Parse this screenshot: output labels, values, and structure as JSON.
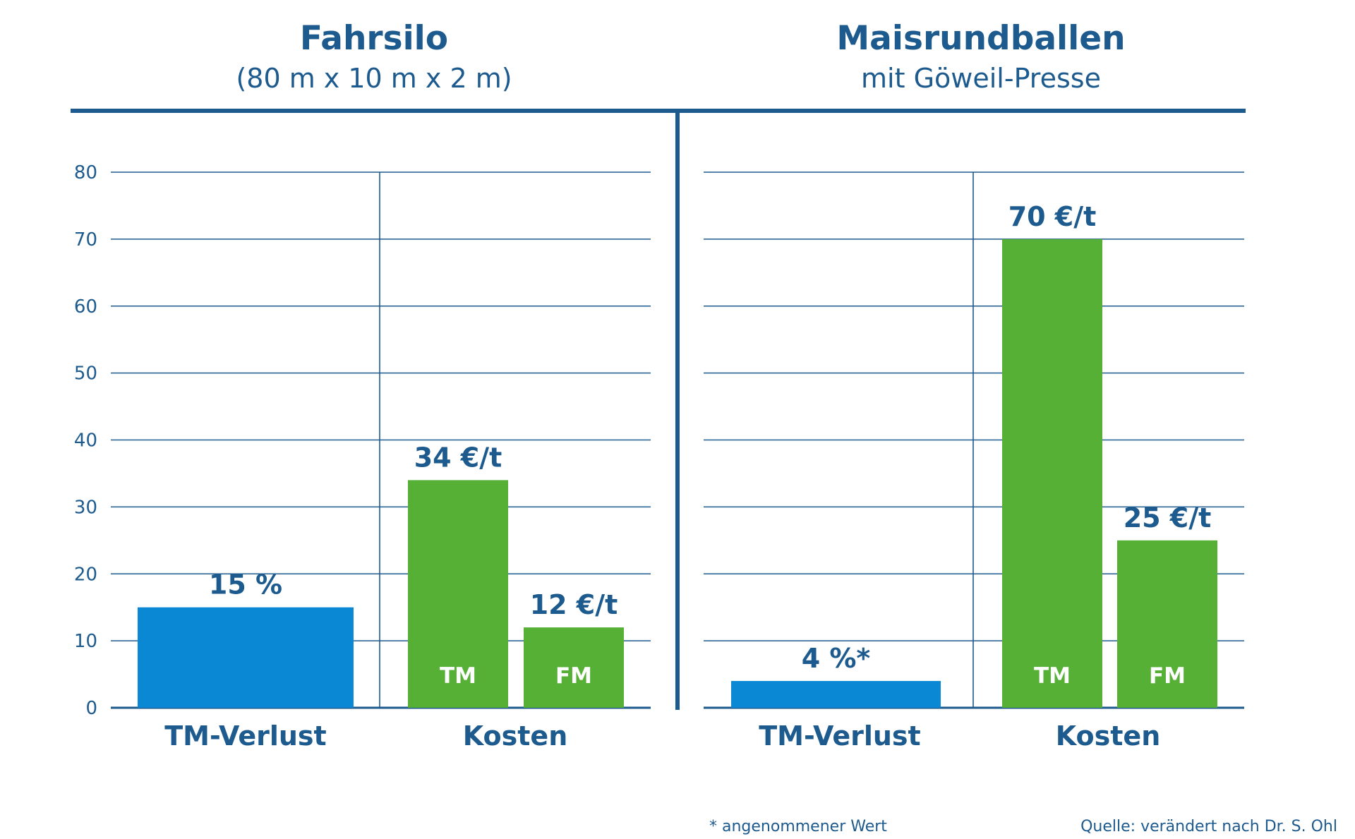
{
  "colors": {
    "text": "#1d5a8e",
    "grid": "#1d5a8e",
    "loss_bar": "#0a88d4",
    "cost_bar": "#57b036"
  },
  "chart_data": [
    {
      "type": "bar",
      "title": "Fahrsilo",
      "subtitle": "(80 m x 10 m x 2 m)",
      "ylim": [
        0,
        80
      ],
      "yticks": [
        "0",
        "10",
        "20",
        "30",
        "40",
        "50",
        "60",
        "70",
        "80"
      ],
      "categories": [
        "TM-Verlust",
        "Kosten"
      ],
      "bars": [
        {
          "group": "TM-Verlust",
          "value": 15,
          "label": "15 %",
          "inner": ""
        },
        {
          "group": "Kosten",
          "value": 34,
          "label": "34 €/t",
          "inner": "TM"
        },
        {
          "group": "Kosten",
          "value": 12,
          "label": "12 €/t",
          "inner": "FM"
        }
      ]
    },
    {
      "type": "bar",
      "title": "Maisrundballen",
      "subtitle": "mit Göweil-Presse",
      "ylim": [
        0,
        80
      ],
      "categories": [
        "TM-Verlust",
        "Kosten"
      ],
      "bars": [
        {
          "group": "TM-Verlust",
          "value": 4,
          "label": "4 %*",
          "inner": ""
        },
        {
          "group": "Kosten",
          "value": 70,
          "label": "70 €/t",
          "inner": "TM"
        },
        {
          "group": "Kosten",
          "value": 25,
          "label": "25 €/t",
          "inner": "FM"
        }
      ]
    }
  ],
  "footnote": "* angenommener Wert",
  "source": "Quelle: verändert nach Dr. S. Ohl"
}
